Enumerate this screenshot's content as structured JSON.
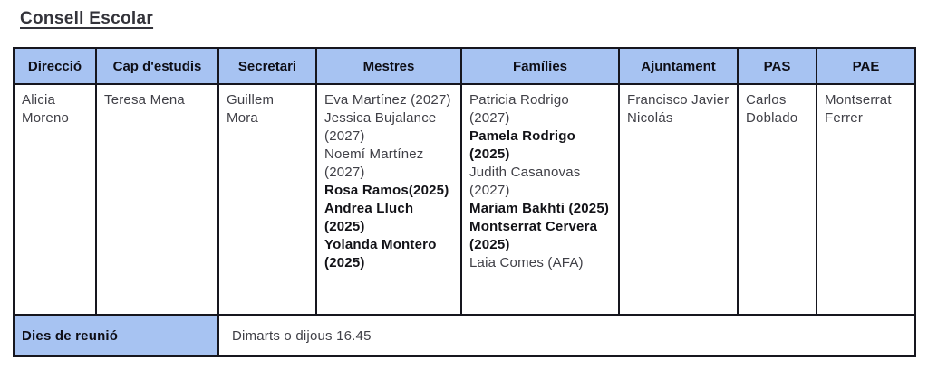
{
  "page": {
    "title": "Consell Escolar"
  },
  "colors": {
    "header_bg": "#a7c3f2",
    "border": "#16161e",
    "body_text": "#404047",
    "strong_text": "#121217",
    "title_text": "#33333a"
  },
  "table": {
    "columns": [
      {
        "header": "Direcció",
        "person": "Alicia Moreno"
      },
      {
        "header": "Cap d'estudis",
        "person": "Teresa Mena"
      },
      {
        "header": "Secretari",
        "person": "Guillem Mora"
      },
      {
        "header": "Mestres",
        "members": [
          {
            "text": "Eva Martínez (2027)",
            "bold": false
          },
          {
            "text": "Jessica Bujalance (2027)",
            "bold": false
          },
          {
            "text": "Noemí Martínez (2027)",
            "bold": false
          },
          {
            "text": "Rosa Ramos(2025)",
            "bold": true
          },
          {
            "text": "Andrea Lluch (2025)",
            "bold": true
          },
          {
            "text": "Yolanda Montero (2025)",
            "bold": true
          }
        ]
      },
      {
        "header": "Famílies",
        "members": [
          {
            "text": "Patricia Rodrigo (2027)",
            "bold": false
          },
          {
            "text": "Pamela Rodrigo (2025)",
            "bold": true
          },
          {
            "text": "Judith Casanovas (2027)",
            "bold": false
          },
          {
            "text": "Mariam Bakhti (2025)",
            "bold": true
          },
          {
            "text": "Montserrat Cervera (2025)",
            "bold": true
          },
          {
            "text": "Laia Comes (AFA)",
            "bold": false
          }
        ]
      },
      {
        "header": "Ajuntament",
        "person": "Francisco Javier Nicolás"
      },
      {
        "header": "PAS",
        "person": "Carlos Doblado"
      },
      {
        "header": "PAE",
        "person": "Montserrat Ferrer"
      }
    ],
    "footer": {
      "label": "Dies de reunió",
      "value": "Dimarts o dijous 16.45"
    }
  }
}
